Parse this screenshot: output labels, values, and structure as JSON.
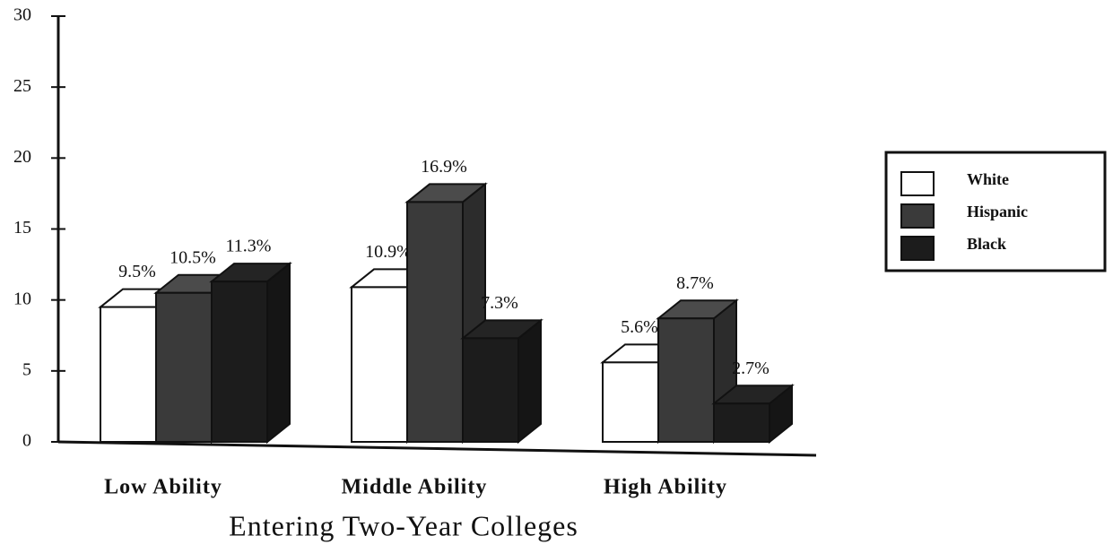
{
  "chart_data": {
    "type": "bar3d",
    "x_label": "Entering Two-Year Colleges",
    "categories": [
      "Low Ability",
      "Middle Ability",
      "High Ability"
    ],
    "series": [
      {
        "name": "White",
        "color": "#ffffff",
        "values": [
          9.5,
          10.9,
          5.6
        ],
        "value_labels": [
          "9.5%",
          "10.9%",
          "5.6%"
        ]
      },
      {
        "name": "Hispanic",
        "color": "#3a3a3a",
        "values": [
          10.5,
          16.9,
          8.7
        ],
        "value_labels": [
          "10.5%",
          "16.9%",
          "8.7%"
        ]
      },
      {
        "name": "Black",
        "color": "#1c1c1c",
        "values": [
          11.3,
          7.3,
          2.7
        ],
        "value_labels": [
          "11.3%",
          "7.3%",
          "2.7%"
        ]
      }
    ],
    "ylim": [
      0,
      30
    ],
    "yticks": [
      0,
      5,
      10,
      15,
      20,
      25,
      30
    ],
    "legend": "right"
  }
}
